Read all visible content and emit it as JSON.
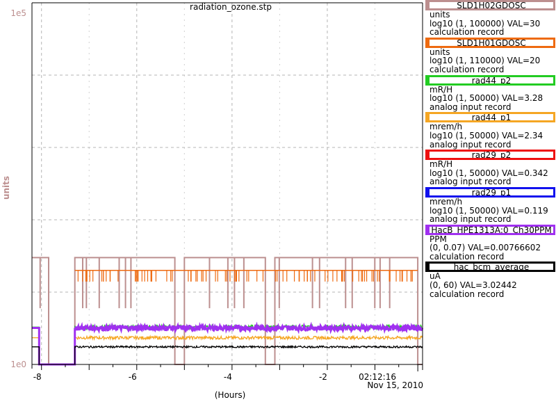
{
  "chart_data": {
    "type": "line",
    "title": "radiation_ozone.stp",
    "ylabel": "units",
    "xlabel": "(Hours)",
    "x_range": [
      -8.2,
      0
    ],
    "y_top_label": "1e5",
    "y_bottom_label": "1e0",
    "x_ticks": [
      -8,
      -6,
      -4,
      -2
    ],
    "x_tick_labels": [
      "-8",
      "-6",
      "-4",
      "-2"
    ],
    "end_time": "02:12:16",
    "end_date": "Nov 15, 2010",
    "grid": true,
    "series": [
      {
        "name": "SLD1H02GDOSC",
        "color": "#bc8f8f",
        "units": "units",
        "range": "log10 (1, 100000)",
        "value": "VAL=30",
        "record": "calculation record",
        "mode": "step",
        "segments": [
          [
            -8.2,
            -7.85,
            30
          ],
          [
            -7.85,
            -7.3,
            1
          ],
          [
            -7.3,
            -5.2,
            30
          ],
          [
            -5.2,
            -5.0,
            1
          ],
          [
            -5.0,
            -4.4,
            30
          ],
          [
            -4.4,
            -3.3,
            30
          ],
          [
            -3.3,
            -3.1,
            1
          ],
          [
            -3.1,
            -1.9,
            30
          ],
          [
            -1.9,
            -0.1,
            30
          ],
          [
            -0.1,
            0,
            1
          ]
        ]
      },
      {
        "name": "SLD1H01GDOSC",
        "color": "#ee6a10",
        "units": "units",
        "range": "log10 (1, 110000)",
        "value": "VAL=20",
        "record": "calculation record",
        "mode": "step",
        "segments": [
          [
            -7.3,
            -5.95,
            20
          ],
          [
            -5.95,
            -5.2,
            20
          ],
          [
            -5.0,
            -4.4,
            20
          ],
          [
            -4.4,
            -3.3,
            20
          ],
          [
            -3.1,
            -1.2,
            20
          ],
          [
            -1.2,
            -0.1,
            20
          ]
        ]
      },
      {
        "name": "rad44_p2",
        "color": "#22cc22",
        "units": "mR/H",
        "range": "log10 (1, 50000)",
        "value": "VAL=3.28",
        "record": "analog input record",
        "mode": "noise",
        "base": 3.28,
        "jitter": 0.07
      },
      {
        "name": "rad44_p1",
        "color": "#f5a623",
        "units": "mrem/h",
        "range": "log10 (1, 50000)",
        "value": "VAL=2.34",
        "record": "analog input record",
        "mode": "noise",
        "base": 2.34,
        "jitter": 0.05
      },
      {
        "name": "rad29_p2",
        "color": "#ee1111",
        "units": "mR/H",
        "range": "log10 (1, 50000)",
        "value": "VAL=0.342",
        "record": "analog input record",
        "mode": "none"
      },
      {
        "name": "rad29_p1",
        "color": "#1111ee",
        "units": "mrem/h",
        "range": "log10 (1, 50000)",
        "value": "VAL=0.119",
        "record": "analog input record",
        "mode": "none"
      },
      {
        "name": "HacB_HPE1313A:0_Ch30PPM",
        "color": "#a030f0",
        "units": "PPM",
        "range": "(0, 0.07)",
        "value": "VAL=0.00766602",
        "record": "calculation record",
        "mode": "noise",
        "base": 3.2,
        "jitter": 0.08
      },
      {
        "name": "hac_bcm_average",
        "color": "#000000",
        "units": "uA",
        "range": "(0, 60)",
        "value": "VAL=3.02442",
        "record": "calculation record",
        "mode": "noise",
        "base": 1.75,
        "jitter": 0.03
      }
    ]
  }
}
